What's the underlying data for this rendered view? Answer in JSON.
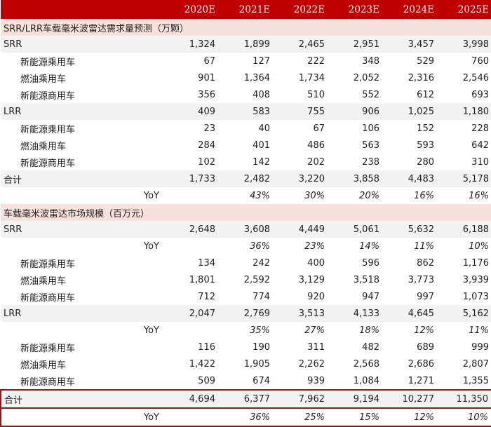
{
  "header": {
    "years": [
      "2020E",
      "2021E",
      "2022E",
      "2023E",
      "2024E",
      "2025E"
    ]
  },
  "section1": {
    "title": "SRR/LRR车载毫米波雷达需求量预测（万颗）",
    "srr": {
      "label": "SRR",
      "values": [
        "1,324",
        "1,899",
        "2,465",
        "2,951",
        "3,457",
        "3,998"
      ]
    },
    "srr_rows": [
      {
        "label": "新能源乘用车",
        "values": [
          "67",
          "127",
          "222",
          "348",
          "529",
          "760"
        ]
      },
      {
        "label": "燃油乘用车",
        "values": [
          "901",
          "1,364",
          "1,734",
          "2,052",
          "2,316",
          "2,546"
        ]
      },
      {
        "label": "新能源商用车",
        "values": [
          "356",
          "408",
          "510",
          "552",
          "612",
          "693"
        ]
      }
    ],
    "lrr": {
      "label": "LRR",
      "values": [
        "409",
        "583",
        "755",
        "906",
        "1,025",
        "1,180"
      ]
    },
    "lrr_rows": [
      {
        "label": "新能源乘用车",
        "values": [
          "23",
          "40",
          "67",
          "106",
          "152",
          "228"
        ]
      },
      {
        "label": "燃油乘用车",
        "values": [
          "284",
          "401",
          "486",
          "563",
          "593",
          "642"
        ]
      },
      {
        "label": "新能源商用车",
        "values": [
          "102",
          "142",
          "202",
          "238",
          "280",
          "310"
        ]
      }
    ],
    "total": {
      "label": "合计",
      "values": [
        "1,733",
        "2,482",
        "3,220",
        "3,858",
        "4,483",
        "5,178"
      ]
    },
    "yoy": {
      "label": "YoY",
      "values": [
        "",
        "43%",
        "30%",
        "20%",
        "16%",
        "16%"
      ]
    }
  },
  "section2": {
    "title": "车载毫米波雷达市场规模（百万元）",
    "srr": {
      "label": "SRR",
      "values": [
        "2,648",
        "3,608",
        "4,449",
        "5,061",
        "5,632",
        "6,188"
      ]
    },
    "srr_yoy": {
      "label": "YoY",
      "values": [
        "",
        "36%",
        "23%",
        "14%",
        "11%",
        "10%"
      ]
    },
    "srr_rows": [
      {
        "label": "新能源乘用车",
        "values": [
          "134",
          "242",
          "400",
          "596",
          "862",
          "1,176"
        ]
      },
      {
        "label": "燃油乘用车",
        "values": [
          "1,801",
          "2,592",
          "3,129",
          "3,518",
          "3,773",
          "3,939"
        ]
      },
      {
        "label": "新能源商用车",
        "values": [
          "712",
          "774",
          "920",
          "947",
          "997",
          "1,073"
        ]
      }
    ],
    "lrr": {
      "label": "LRR",
      "values": [
        "2,047",
        "2,769",
        "3,513",
        "4,133",
        "4,645",
        "5,162"
      ]
    },
    "lrr_yoy": {
      "label": "YoY",
      "values": [
        "",
        "35%",
        "27%",
        "18%",
        "12%",
        "11%"
      ]
    },
    "lrr_rows": [
      {
        "label": "新能源乘用车",
        "values": [
          "116",
          "190",
          "311",
          "482",
          "689",
          "999"
        ]
      },
      {
        "label": "燃油乘用车",
        "values": [
          "1,422",
          "1,905",
          "2,262",
          "2,568",
          "2,686",
          "2,807"
        ]
      },
      {
        "label": "新能源商用车",
        "values": [
          "509",
          "674",
          "939",
          "1,084",
          "1,271",
          "1,355"
        ]
      }
    ],
    "total": {
      "label": "合计",
      "values": [
        "4,694",
        "6,377",
        "7,962",
        "9,194",
        "10,277",
        "11,350"
      ]
    },
    "yoy": {
      "label": "YoY",
      "values": [
        "",
        "36%",
        "25%",
        "15%",
        "12%",
        "10%"
      ]
    }
  }
}
